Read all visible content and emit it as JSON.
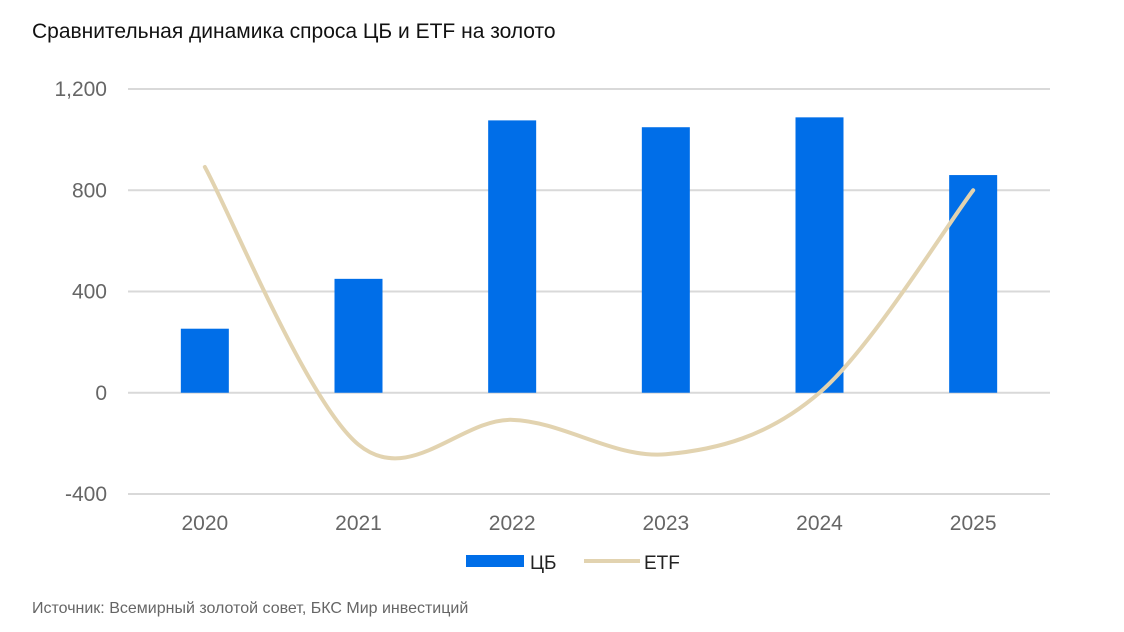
{
  "chart_data": {
    "type": "bar",
    "title": "Сравнительная динамика спроса ЦБ и ETF на золото",
    "categories": [
      "2020",
      "2021",
      "2022",
      "2023",
      "2024",
      "2025"
    ],
    "series": [
      {
        "name": "ЦБ",
        "type": "bar",
        "color": "#006ee8",
        "values": [
          253,
          450,
          1076,
          1049,
          1088,
          860
        ]
      },
      {
        "name": "ETF",
        "type": "line",
        "smooth": true,
        "color": "#e2d3b0",
        "values": [
          892,
          -205,
          -107,
          -243,
          0,
          800
        ]
      }
    ],
    "ylim": [
      -400,
      1200
    ],
    "yticks": [
      -400,
      0,
      400,
      800,
      1200
    ],
    "ytick_labels": [
      "-400",
      "0",
      "400",
      "800",
      "1,200"
    ],
    "grid": true,
    "legend": "bottom",
    "source": "Источник: Всемирный золотой совет, БКС Мир инвестиций"
  }
}
